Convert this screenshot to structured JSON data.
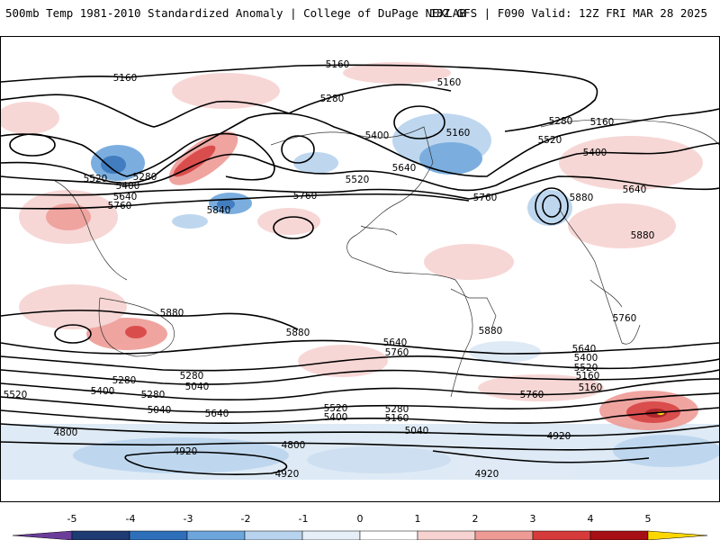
{
  "header": {
    "title": "500mb Temp 1981-2010 Standardized Anomaly | College of DuPage NEXLAB",
    "run_info": "18Z GFS | F090 Valid: 12Z FRI MAR 28 2025"
  },
  "colorbar": {
    "ticks": [
      "-5",
      "-4",
      "-3",
      "-2",
      "-1",
      "0",
      "1",
      "2",
      "3",
      "4",
      "5"
    ],
    "colors": [
      "#6a3d9a",
      "#1f3b73",
      "#2e6fba",
      "#6da6dc",
      "#b7d3ee",
      "#e6eef7",
      "#ffffff",
      "#f6d3d1",
      "#ee9b96",
      "#d63a3a",
      "#a50f15",
      "#6b0009",
      "#ffd700"
    ]
  },
  "map": {
    "contour_labels": [
      {
        "id": "c1",
        "text": "5160"
      },
      {
        "id": "c2",
        "text": "5160"
      },
      {
        "id": "c3",
        "text": "5160"
      },
      {
        "id": "c4",
        "text": "5280"
      },
      {
        "id": "c5",
        "text": "5160"
      },
      {
        "id": "c6",
        "text": "5280"
      },
      {
        "id": "c7",
        "text": "5160"
      },
      {
        "id": "c8",
        "text": "5400"
      },
      {
        "id": "c9",
        "text": "5520"
      },
      {
        "id": "c10",
        "text": "5400"
      },
      {
        "id": "c11",
        "text": "5520"
      },
      {
        "id": "c12",
        "text": "5280"
      },
      {
        "id": "c13",
        "text": "5400"
      },
      {
        "id": "c14",
        "text": "5640"
      },
      {
        "id": "c15",
        "text": "5760"
      },
      {
        "id": "c16",
        "text": "5640"
      },
      {
        "id": "c17",
        "text": "5520"
      },
      {
        "id": "c18",
        "text": "5760"
      },
      {
        "id": "c19",
        "text": "5640"
      },
      {
        "id": "c20",
        "text": "5760"
      },
      {
        "id": "c21",
        "text": "5840"
      },
      {
        "id": "c22",
        "text": "5880"
      },
      {
        "id": "c23",
        "text": "5880"
      },
      {
        "id": "c24",
        "text": "5880"
      },
      {
        "id": "c25",
        "text": "5880"
      },
      {
        "id": "c26",
        "text": "5880"
      },
      {
        "id": "c27",
        "text": "5760"
      },
      {
        "id": "c28",
        "text": "5640"
      },
      {
        "id": "c29",
        "text": "5760"
      },
      {
        "id": "c30",
        "text": "5640"
      },
      {
        "id": "c31",
        "text": "5400"
      },
      {
        "id": "c32",
        "text": "5280"
      },
      {
        "id": "c33",
        "text": "5520"
      },
      {
        "id": "c34",
        "text": "5160"
      },
      {
        "id": "c35",
        "text": "5040"
      },
      {
        "id": "c36",
        "text": "5280"
      },
      {
        "id": "c37",
        "text": "5520"
      },
      {
        "id": "c38",
        "text": "5400"
      },
      {
        "id": "c39",
        "text": "5280"
      },
      {
        "id": "c40",
        "text": "5160"
      },
      {
        "id": "c41",
        "text": "5040"
      },
      {
        "id": "c42",
        "text": "5520"
      },
      {
        "id": "c43",
        "text": "5760"
      },
      {
        "id": "c44",
        "text": "5640"
      },
      {
        "id": "c45",
        "text": "5400"
      },
      {
        "id": "c46",
        "text": "5280"
      },
      {
        "id": "c47",
        "text": "5160"
      },
      {
        "id": "c48",
        "text": "5040"
      },
      {
        "id": "c49",
        "text": "4920"
      },
      {
        "id": "c50",
        "text": "4800"
      },
      {
        "id": "c51",
        "text": "4920"
      },
      {
        "id": "c52",
        "text": "4800"
      },
      {
        "id": "c53",
        "text": "4920"
      }
    ]
  }
}
